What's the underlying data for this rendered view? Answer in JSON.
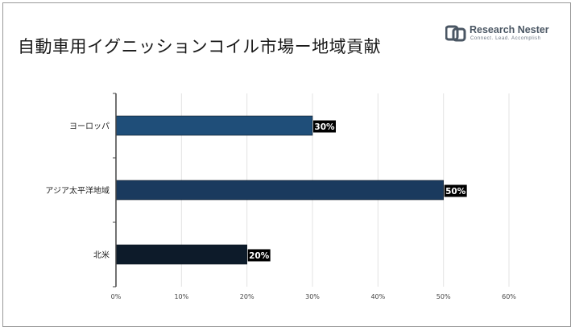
{
  "title": "自動車用イグニッションコイル市場ー地域貢献",
  "logo": {
    "name": "Research Nester",
    "tagline": "Connect. Lead. Accomplish"
  },
  "chart_data": {
    "type": "bar",
    "orientation": "horizontal",
    "title": "自動車用イグニッションコイル市場ー地域貢献",
    "categories": [
      "ヨーロッパ",
      "アジア太平洋地域",
      "北米"
    ],
    "values": [
      30,
      50,
      20
    ],
    "data_labels": [
      "30%",
      "50%",
      "20%"
    ],
    "bar_colors": [
      "#1f4e79",
      "#1a3a5e",
      "#0d1b2a"
    ],
    "xlim": [
      0,
      60
    ],
    "xticks": [
      "0%",
      "10%",
      "20%",
      "30%",
      "40%",
      "50%",
      "60%"
    ],
    "xtick_values": [
      0,
      10,
      20,
      30,
      40,
      50,
      60
    ],
    "grid": true,
    "legend": "none"
  }
}
